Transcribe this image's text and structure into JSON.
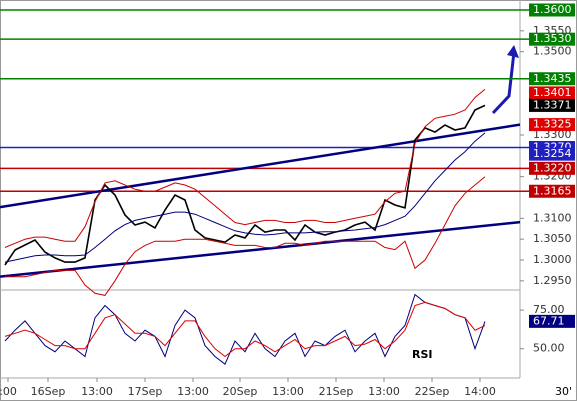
{
  "chart_data": {
    "type": "line",
    "x": [
      0,
      1,
      2,
      3,
      4,
      5,
      6,
      7,
      8,
      9,
      10,
      11,
      12,
      13,
      14,
      15,
      16,
      17,
      18,
      19,
      20,
      21,
      22,
      23,
      24,
      25,
      26,
      27,
      28,
      29,
      30,
      31,
      32,
      33,
      34,
      35,
      36,
      37,
      38,
      39,
      40,
      41,
      42,
      43,
      44,
      45,
      46,
      47,
      48
    ],
    "xlim": [
      -0.5,
      51.5
    ],
    "xticks": [
      {
        "value": 0.3,
        "label": ":00"
      },
      {
        "value": 4.3,
        "label": "16Sep"
      },
      {
        "value": 9.2,
        "label": "13:00"
      },
      {
        "value": 14,
        "label": "17Sep"
      },
      {
        "value": 18.8,
        "label": "13:00"
      },
      {
        "value": 23.5,
        "label": "20Sep"
      },
      {
        "value": 28.3,
        "label": "13:00"
      },
      {
        "value": 33.1,
        "label": "21Sep"
      },
      {
        "value": 37.9,
        "label": "13:00"
      },
      {
        "value": 42.7,
        "label": "22Sep"
      },
      {
        "value": 47.5,
        "label": "14:00"
      }
    ],
    "timeframe": "30'",
    "ylim": [
      1.2928,
      1.3624
    ],
    "yticks": [
      {
        "value": 1.355,
        "label": "1.3550"
      },
      {
        "value": 1.35,
        "label": "1.3500"
      },
      {
        "value": 1.33,
        "label": "1.3300"
      },
      {
        "value": 1.32,
        "label": "1.3200"
      },
      {
        "value": 1.31,
        "label": "1.3100"
      },
      {
        "value": 1.305,
        "label": "1.3050"
      },
      {
        "value": 1.3,
        "label": "1.3000"
      },
      {
        "value": 1.295,
        "label": "1.2950"
      }
    ],
    "series": [
      {
        "color": "#000000",
        "values": [
          1.2988,
          1.3024,
          1.3036,
          1.3048,
          1.3019,
          1.3005,
          1.2995,
          1.2995,
          1.3005,
          1.3144,
          1.318,
          1.3156,
          1.3108,
          1.3084,
          1.3091,
          1.3077,
          1.312,
          1.3156,
          1.3144,
          1.3072,
          1.3053,
          1.3048,
          1.3043,
          1.306,
          1.3053,
          1.3084,
          1.3067,
          1.3072,
          1.3072,
          1.3048,
          1.3084,
          1.3067,
          1.306,
          1.3067,
          1.3072,
          1.3084,
          1.3091,
          1.3072,
          1.3144,
          1.3132,
          1.3125,
          1.3288,
          1.3317,
          1.3307,
          1.3324,
          1.3312,
          1.3317,
          1.336,
          1.3371
        ]
      },
      {
        "color": "#000080",
        "values": [
          1.2995,
          1.3,
          1.3005,
          1.301,
          1.3012,
          1.3012,
          1.301,
          1.301,
          1.3012,
          1.303,
          1.305,
          1.307,
          1.3085,
          1.3095,
          1.31,
          1.3105,
          1.311,
          1.3115,
          1.3115,
          1.311,
          1.31,
          1.309,
          1.308,
          1.307,
          1.3065,
          1.3062,
          1.306,
          1.3062,
          1.3065,
          1.3065,
          1.3065,
          1.3067,
          1.3068,
          1.3068,
          1.307,
          1.3072,
          1.3075,
          1.3078,
          1.3085,
          1.3095,
          1.3105,
          1.313,
          1.316,
          1.319,
          1.3215,
          1.324,
          1.326,
          1.3285,
          1.3305
        ]
      },
      {
        "color": "#cc0000",
        "values": [
          1.303,
          1.304,
          1.305,
          1.3055,
          1.3055,
          1.305,
          1.3045,
          1.3045,
          1.308,
          1.314,
          1.3185,
          1.319,
          1.318,
          1.317,
          1.3165,
          1.3165,
          1.3175,
          1.3185,
          1.318,
          1.317,
          1.315,
          1.313,
          1.311,
          1.309,
          1.3085,
          1.309,
          1.3095,
          1.3095,
          1.309,
          1.309,
          1.3095,
          1.3095,
          1.309,
          1.309,
          1.3095,
          1.31,
          1.3105,
          1.311,
          1.314,
          1.316,
          1.3165,
          1.328,
          1.332,
          1.334,
          1.3345,
          1.335,
          1.336,
          1.339,
          1.341
        ]
      },
      {
        "color": "#cc0000",
        "values": [
          1.296,
          1.296,
          1.296,
          1.2965,
          1.297,
          1.2975,
          1.2975,
          1.2975,
          1.294,
          1.292,
          1.2915,
          1.295,
          1.299,
          1.302,
          1.3035,
          1.3045,
          1.3045,
          1.3045,
          1.305,
          1.305,
          1.305,
          1.3045,
          1.304,
          1.3035,
          1.3035,
          1.3035,
          1.303,
          1.303,
          1.304,
          1.304,
          1.3035,
          1.304,
          1.3045,
          1.3045,
          1.3045,
          1.3045,
          1.3045,
          1.3045,
          1.303,
          1.3025,
          1.3045,
          1.298,
          1.3,
          1.304,
          1.3085,
          1.313,
          1.316,
          1.318,
          1.32
        ]
      }
    ],
    "trendlines": [
      {
        "color": "#000080",
        "x": [
          -0.5,
          51.5
        ],
        "values": [
          1.3127,
          1.3325
        ]
      },
      {
        "color": "#000080",
        "x": [
          -0.5,
          51.5
        ],
        "values": [
          1.296,
          1.3091
        ]
      }
    ],
    "levels": [
      {
        "value": 1.36,
        "label": "1.3600",
        "color": "#008000",
        "line": true
      },
      {
        "value": 1.353,
        "label": "1.3530",
        "color": "#008000",
        "line": true
      },
      {
        "value": 1.3435,
        "label": "1.3435",
        "color": "#008000",
        "line": true
      },
      {
        "value": 1.3401,
        "label": "1.3401",
        "color": "#e00000",
        "line": false
      },
      {
        "value": 1.3371,
        "label": "1.3371",
        "color": "#000000",
        "line": false
      },
      {
        "value": 1.3325,
        "label": "1.3325",
        "color": "#e00000",
        "line": false
      },
      {
        "value": 1.327,
        "label": "1.3270",
        "color": "#2020c0",
        "line": true
      },
      {
        "value": 1.3254,
        "label": "1.3254",
        "color": "#2020c0",
        "line": false
      },
      {
        "value": 1.322,
        "label": "1.3220",
        "color": "#c00000",
        "line": true
      },
      {
        "value": 1.3165,
        "label": "1.3165",
        "color": "#c00000",
        "line": true
      }
    ],
    "rsi": {
      "label": "RSI",
      "ylim": [
        33,
        88
      ],
      "yticks": [
        {
          "value": 75,
          "label": "75.00"
        },
        {
          "value": 50,
          "label": "50.00"
        }
      ],
      "current": {
        "value": 67.71,
        "label": "67.71",
        "color": "#000080"
      },
      "series": [
        {
          "color": "#000080",
          "values": [
            55,
            62,
            68,
            60,
            52,
            48,
            55,
            50,
            45,
            70,
            78,
            72,
            60,
            55,
            62,
            58,
            45,
            65,
            75,
            70,
            52,
            45,
            40,
            55,
            48,
            60,
            50,
            45,
            55,
            60,
            45,
            55,
            52,
            58,
            62,
            48,
            55,
            60,
            45,
            58,
            65,
            85,
            80,
            78,
            76,
            72,
            70,
            50,
            67.71
          ]
        },
        {
          "color": "#dd0000",
          "values": [
            58,
            60,
            62,
            60,
            56,
            52,
            52,
            50,
            50,
            60,
            70,
            72,
            66,
            60,
            60,
            58,
            52,
            60,
            68,
            68,
            58,
            50,
            45,
            50,
            50,
            55,
            52,
            48,
            52,
            56,
            50,
            52,
            52,
            55,
            58,
            52,
            53,
            56,
            50,
            55,
            62,
            78,
            80,
            78,
            76,
            72,
            70,
            62,
            65
          ]
        }
      ]
    }
  }
}
